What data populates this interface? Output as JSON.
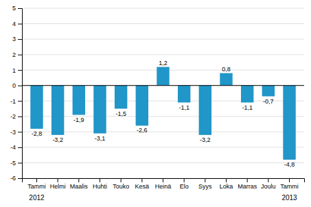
{
  "chart_data": {
    "type": "bar",
    "categories": [
      "Tammi",
      "Helmi",
      "Maalis",
      "Huhti",
      "Touko",
      "Kesä",
      "Heinä",
      "Elo",
      "Syys",
      "Loka",
      "Marras",
      "Joulu",
      "Tammi"
    ],
    "values": [
      -2.8,
      -3.2,
      -1.9,
      -3.1,
      -1.5,
      -2.6,
      1.2,
      -1.1,
      -3.2,
      0.8,
      -1.1,
      -0.7,
      -4.8
    ],
    "value_labels": [
      "-2,8",
      "-3,2",
      "-1,9",
      "-3,1",
      "-1,5",
      "-2,6",
      "1,2",
      "-1,1",
      "-3,2",
      "0,8",
      "-1,1",
      "-0,7",
      "-4,8"
    ],
    "data_labels": true,
    "color": "#2196c8",
    "ylim": [
      -6,
      5
    ],
    "yticks": [
      -6,
      -5,
      -4,
      -3,
      -2,
      -1,
      0,
      1,
      2,
      3,
      4,
      5
    ],
    "grid": true,
    "annotations": [
      {
        "text": "2012",
        "index": 0
      },
      {
        "text": "2013",
        "index": 12
      }
    ]
  }
}
